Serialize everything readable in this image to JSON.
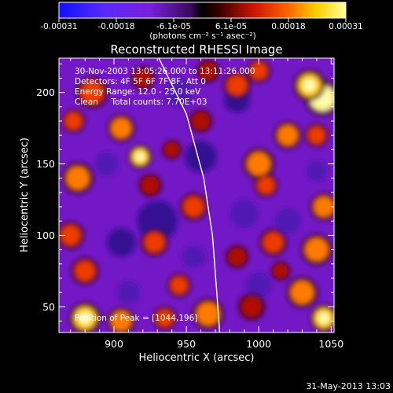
{
  "chart_data": {
    "type": "heatmap",
    "title": "Reconstructed RHESSI Image",
    "xlabel": "Heliocentric X (arcsec)",
    "ylabel": "Heliocentric Y (arcsec)",
    "xlim": [
      862,
      1052
    ],
    "ylim": [
      32,
      224
    ],
    "xticks": [
      900,
      950,
      1000,
      1050
    ],
    "yticks": [
      50,
      100,
      150,
      200
    ],
    "colorbar": {
      "ticks": [
        "-0.00031",
        "-0.00018",
        "-6.1e-05",
        "6.1e-05",
        "0.00018",
        "0.00031"
      ],
      "unit": "(photons cm⁻² s⁻¹ asec⁻²)",
      "range": [
        -0.00031,
        0.00031
      ]
    },
    "annotations": [
      "30-Nov-2003 13:05:26.000 to 13:11:26.000",
      "Detectors: 4F 5F 6F 7F 8F, Att 0",
      "Energy Range: 12.0 - 25.0 keV",
      "Clean     Total counts: 7.70E+03"
    ],
    "peak_text": "Position of Peak = [1044,196]",
    "peak": [
      1044,
      196
    ],
    "limb": [
      [
        931,
        224
      ],
      [
        950,
        185
      ],
      [
        962,
        140
      ],
      [
        968,
        100
      ],
      [
        971,
        60
      ],
      [
        973,
        32
      ]
    ],
    "blobs": [
      [
        1044,
        196,
        9,
        1.0
      ],
      [
        1035,
        205,
        8,
        0.75
      ],
      [
        1020,
        170,
        7,
        0.6
      ],
      [
        1040,
        170,
        6,
        0.55
      ],
      [
        1000,
        150,
        8,
        0.7
      ],
      [
        1005,
        135,
        6,
        0.5
      ],
      [
        985,
        205,
        7,
        0.5
      ],
      [
        1045,
        120,
        7,
        0.65
      ],
      [
        1040,
        90,
        8,
        0.6
      ],
      [
        1010,
        95,
        7,
        0.45
      ],
      [
        1030,
        60,
        8,
        0.6
      ],
      [
        1045,
        42,
        7,
        0.75
      ],
      [
        995,
        50,
        7,
        0.4
      ],
      [
        965,
        45,
        8,
        0.65
      ],
      [
        945,
        65,
        6,
        0.45
      ],
      [
        928,
        95,
        7,
        0.5
      ],
      [
        955,
        120,
        7,
        0.55
      ],
      [
        925,
        135,
        6,
        0.4
      ],
      [
        918,
        155,
        6,
        0.85
      ],
      [
        905,
        175,
        7,
        0.6
      ],
      [
        885,
        200,
        8,
        0.55
      ],
      [
        872,
        180,
        6,
        0.5
      ],
      [
        875,
        140,
        8,
        0.65
      ],
      [
        870,
        100,
        7,
        0.5
      ],
      [
        880,
        75,
        7,
        0.55
      ],
      [
        880,
        42,
        8,
        0.8
      ],
      [
        905,
        40,
        7,
        0.7
      ],
      [
        935,
        42,
        6,
        0.45
      ],
      [
        960,
        180,
        6,
        0.35
      ],
      [
        1000,
        215,
        6,
        0.45
      ],
      [
        965,
        215,
        6,
        0.3
      ],
      [
        920,
        210,
        6,
        0.4
      ],
      [
        985,
        85,
        6,
        0.35
      ],
      [
        1015,
        75,
        5,
        0.3
      ],
      [
        940,
        160,
        5,
        0.3
      ]
    ],
    "dips": [
      [
        930,
        110,
        14,
        1.0
      ],
      [
        905,
        95,
        10,
        0.8
      ],
      [
        960,
        155,
        11,
        0.8
      ],
      [
        990,
        115,
        10,
        0.75
      ],
      [
        985,
        195,
        9,
        0.9
      ],
      [
        945,
        200,
        10,
        0.7
      ],
      [
        895,
        150,
        8,
        0.6
      ],
      [
        1020,
        110,
        9,
        0.6
      ],
      [
        1000,
        65,
        9,
        0.6
      ],
      [
        955,
        85,
        8,
        0.5
      ],
      [
        1040,
        145,
        7,
        0.5
      ],
      [
        910,
        60,
        8,
        0.5
      ]
    ]
  },
  "footer": {
    "date": "31-May-2013 13:03"
  }
}
